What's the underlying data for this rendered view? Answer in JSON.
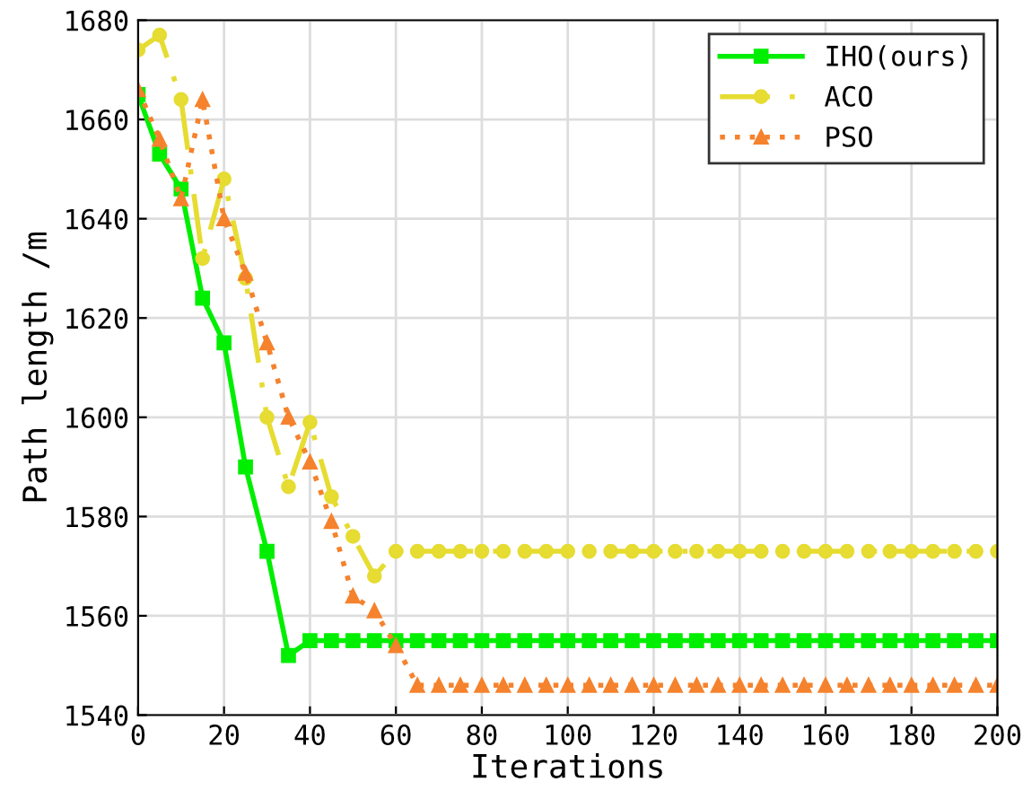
{
  "chart_data": {
    "type": "line",
    "xlabel": "Iterations",
    "ylabel": "Path length /m",
    "x": [
      0,
      5,
      10,
      15,
      20,
      25,
      30,
      35,
      40,
      45,
      50,
      55,
      60,
      65,
      70,
      75,
      80,
      85,
      90,
      95,
      100,
      105,
      110,
      115,
      120,
      125,
      130,
      135,
      140,
      145,
      150,
      155,
      160,
      165,
      170,
      175,
      180,
      185,
      190,
      195,
      200
    ],
    "xlim": [
      0,
      200
    ],
    "xticks": [
      0,
      20,
      40,
      60,
      80,
      100,
      120,
      140,
      160,
      180,
      200
    ],
    "ylim": [
      1540,
      1680
    ],
    "yticks": [
      1540,
      1560,
      1580,
      1600,
      1620,
      1640,
      1660,
      1680
    ],
    "grid": true,
    "legend": "top right",
    "series": [
      {
        "name": "IHO(ours)",
        "color": "#00ee00",
        "marker": "square",
        "line_style": "solid",
        "values": [
          1665,
          1653,
          1646,
          1624,
          1615,
          1590,
          1573,
          1552,
          1555,
          1555,
          1555,
          1555,
          1555,
          1555,
          1555,
          1555,
          1555,
          1555,
          1555,
          1555,
          1555,
          1555,
          1555,
          1555,
          1555,
          1555,
          1555,
          1555,
          1555,
          1555,
          1555,
          1555,
          1555,
          1555,
          1555,
          1555,
          1555,
          1555,
          1555,
          1555,
          1555
        ]
      },
      {
        "name": "ACO",
        "color": "#e6dc32",
        "marker": "circle",
        "line_style": "dashdot",
        "values": [
          1674,
          1677,
          1664,
          1632,
          1648,
          1628,
          1600,
          1586,
          1599,
          1584,
          1576,
          1568,
          1573,
          1573,
          1573,
          1573,
          1573,
          1573,
          1573,
          1573,
          1573,
          1573,
          1573,
          1573,
          1573,
          1573,
          1573,
          1573,
          1573,
          1573,
          1573,
          1573,
          1573,
          1573,
          1573,
          1573,
          1573,
          1573,
          1573,
          1573,
          1573
        ]
      },
      {
        "name": "PSO",
        "color": "#f5822d",
        "marker": "triangle",
        "line_style": "dotted",
        "values": [
          1666,
          1656,
          1644,
          1664,
          1640,
          1629,
          1615,
          1600,
          1591,
          1579,
          1564,
          1561,
          1554,
          1546,
          1546,
          1546,
          1546,
          1546,
          1546,
          1546,
          1546,
          1546,
          1546,
          1546,
          1546,
          1546,
          1546,
          1546,
          1546,
          1546,
          1546,
          1546,
          1546,
          1546,
          1546,
          1546,
          1546,
          1546,
          1546,
          1546,
          1546
        ]
      }
    ]
  }
}
